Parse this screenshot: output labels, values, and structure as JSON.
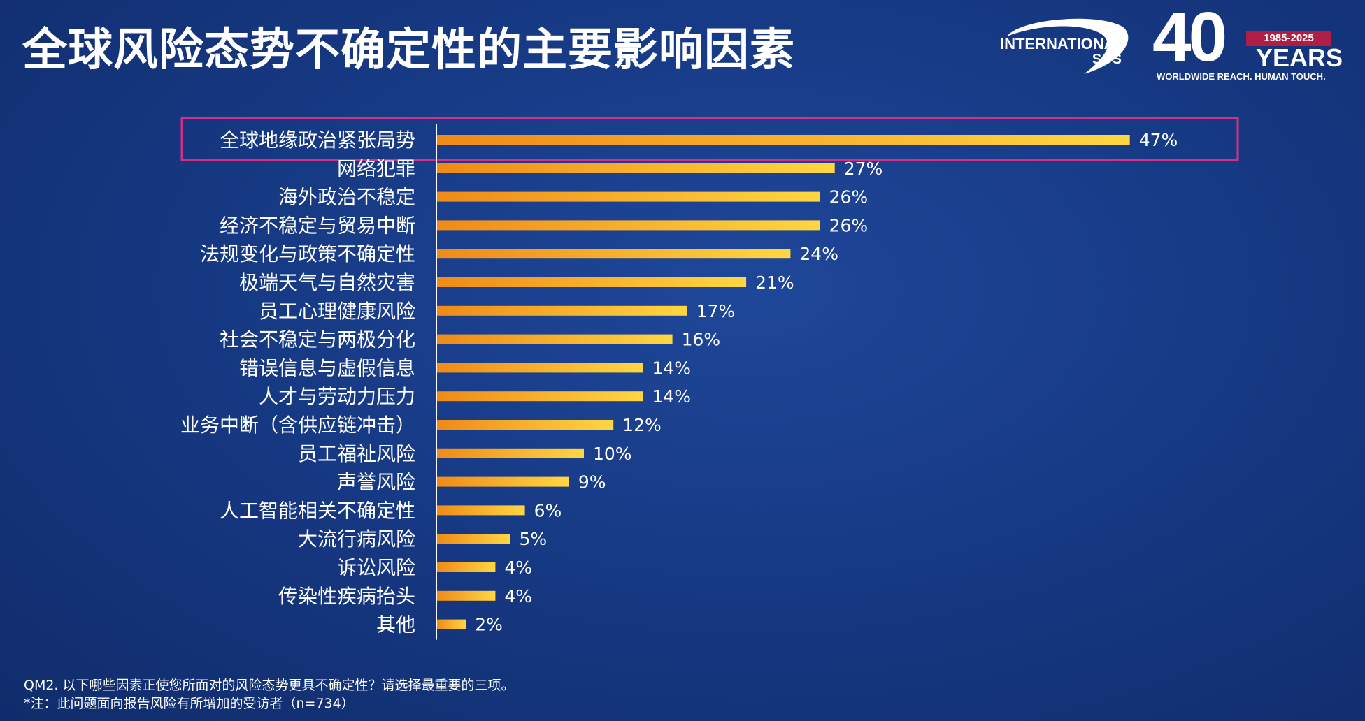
{
  "header": {
    "title": "全球风险态势不确定性的主要影响因素",
    "logo_intl_line1": "INTERNATIONAL",
    "logo_intl_line2": "SOS",
    "logo_40_number": "40",
    "logo_40_ribbon": "1985-2025",
    "logo_40_years": "YEARS",
    "logo_40_tagline": "WORLDWIDE REACH. HUMAN TOUCH."
  },
  "chart_data": {
    "type": "bar",
    "orientation": "horizontal",
    "title": "全球风险态势不确定性的主要影响因素",
    "categories": [
      "全球地缘政治紧张局势",
      "网络犯罪",
      "海外政治不稳定",
      "经济不稳定与贸易中断",
      "法规变化与政策不确定性",
      "极端天气与自然灾害",
      "员工心理健康风险",
      "社会不稳定与两极分化",
      "错误信息与虚假信息",
      "人才与劳动力压力",
      "业务中断（含供应链冲击）",
      "员工福祉风险",
      "声誉风险",
      "人工智能相关不确定性",
      "大流行病风险",
      "诉讼风险",
      "传染性疾病抬头",
      "其他"
    ],
    "values": [
      47,
      27,
      26,
      26,
      24,
      21,
      17,
      16,
      14,
      14,
      12,
      10,
      9,
      6,
      5,
      4,
      4,
      2
    ],
    "labels": [
      "47%",
      "27%",
      "26%",
      "26%",
      "24%",
      "21%",
      "17%",
      "16%",
      "14%",
      "14%",
      "12%",
      "10%",
      "9%",
      "6%",
      "5%",
      "4%",
      "4%",
      "2%"
    ],
    "unit": "%",
    "xlim": [
      0,
      50
    ],
    "highlighted_category": "全球地缘政治紧张局势",
    "colors": {
      "bar_start": "#ef8a17",
      "bar_end": "#ffd642",
      "highlight_border": "#d62f86",
      "axis": "#ffffff"
    }
  },
  "footer": {
    "question": "QM2. 以下哪些因素正使您所面对的风险态势更具不确定性？请选择最重要的三项。",
    "note": "*注：此问题面向报告风险有所增加的受访者（n=734）"
  }
}
